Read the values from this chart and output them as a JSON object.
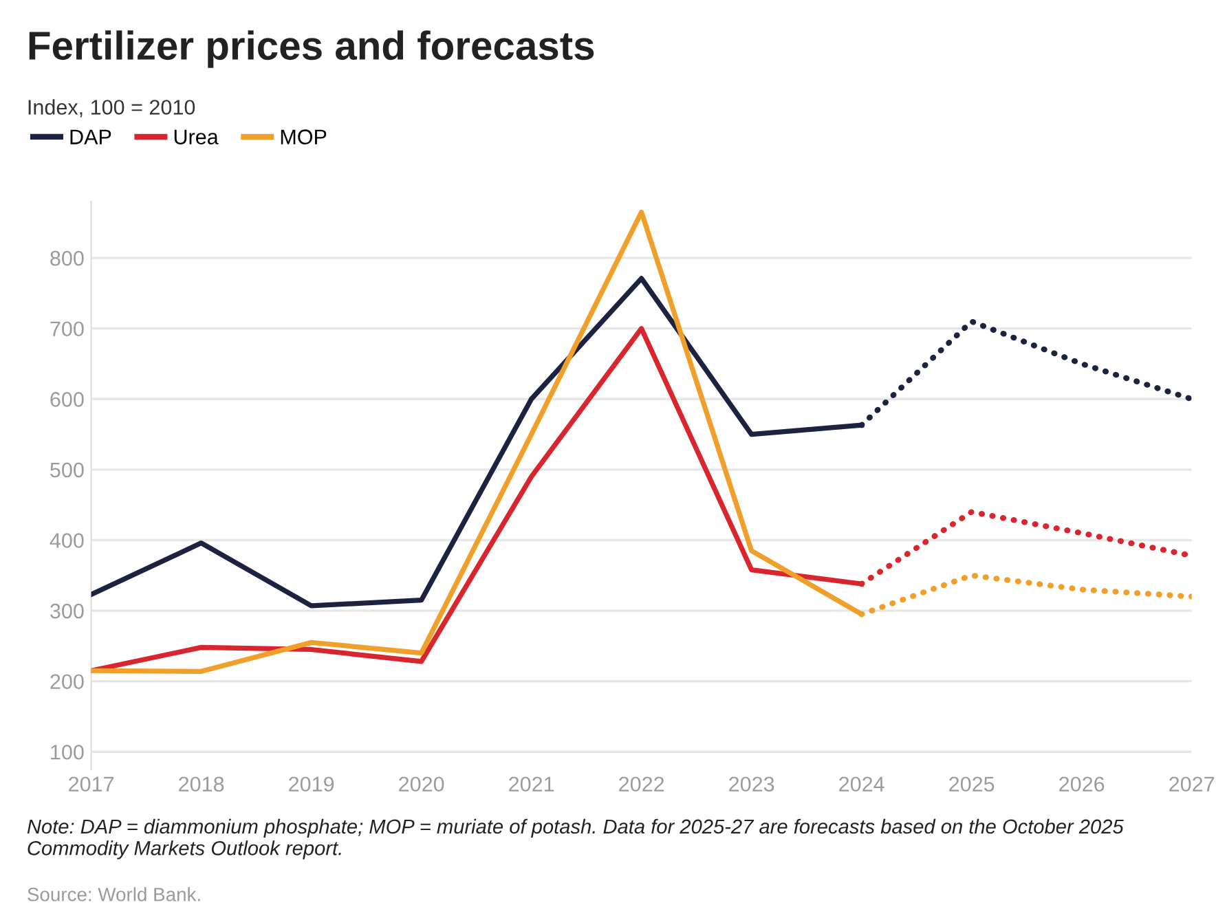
{
  "chart_data": {
    "type": "line",
    "title": "Fertilizer prices and forecasts",
    "subtitle": "Index, 100 = 2010",
    "series": [
      {
        "name": "DAP",
        "color": "#1b2340",
        "x": [
          2017,
          2018,
          2019,
          2020,
          2021,
          2022,
          2023,
          2024
        ],
        "values": [
          323,
          396,
          307,
          315,
          600,
          771,
          550,
          563
        ]
      },
      {
        "name": "Urea",
        "color": "#d9262e",
        "x": [
          2017,
          2018,
          2019,
          2020,
          2021,
          2022,
          2023,
          2024
        ],
        "values": [
          215,
          248,
          245,
          228,
          490,
          700,
          358,
          338
        ]
      },
      {
        "name": "MOP",
        "color": "#f0a02a",
        "x": [
          2017,
          2018,
          2019,
          2020,
          2021,
          2022,
          2023,
          2024
        ],
        "values": [
          215,
          214,
          255,
          240,
          550,
          865,
          385,
          295
        ]
      },
      {
        "color": "#1b2340",
        "line_style": "dotted",
        "x": [
          2024,
          2025,
          2026,
          2027
        ],
        "values": [
          563,
          710,
          650,
          600
        ]
      },
      {
        "color": "#d9262e",
        "line_style": "dotted",
        "x": [
          2024,
          2025,
          2026,
          2027
        ],
        "values": [
          338,
          440,
          410,
          378
        ]
      },
      {
        "color": "#f0a02a",
        "line_style": "dotted",
        "x": [
          2024,
          2025,
          2026,
          2027
        ],
        "values": [
          295,
          350,
          330,
          320
        ]
      }
    ],
    "xlim": [
      2017,
      2027
    ],
    "xticks": [
      2017,
      2018,
      2019,
      2020,
      2021,
      2022,
      2023,
      2024,
      2025,
      2026,
      2027
    ],
    "ylim": [
      75,
      880
    ],
    "yticks": [
      100,
      200,
      300,
      400,
      500,
      600,
      700,
      800
    ],
    "grid": "y",
    "legend": "top left",
    "line_style": "solid",
    "annotations": [
      "Note: DAP = diammonium phosphate; MOP = muriate of potash. Data for 2025-27 are forecasts based on the October 2025 Commodity Markets Outlook report.",
      "Source: World Bank."
    ]
  }
}
